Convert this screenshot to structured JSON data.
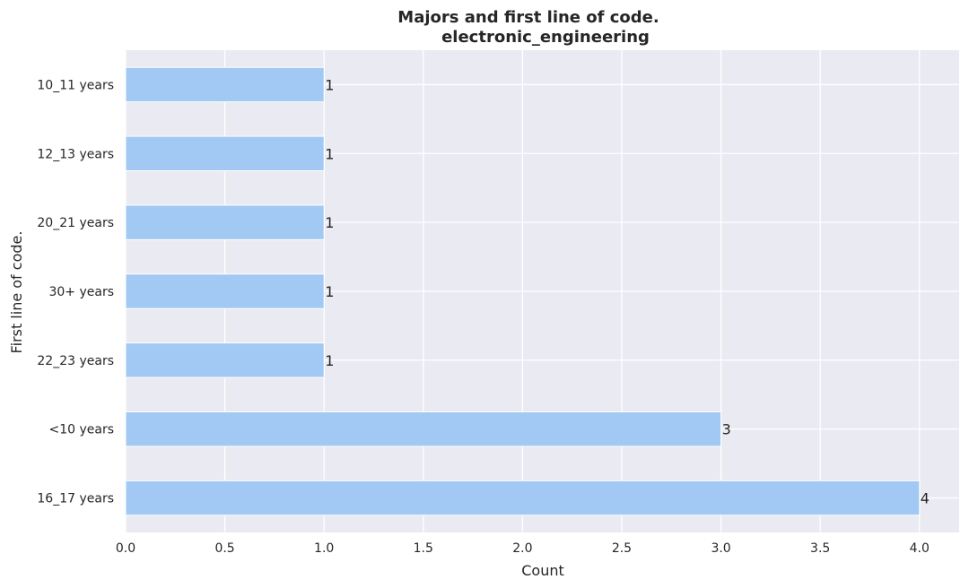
{
  "chart_data": {
    "type": "bar",
    "orientation": "horizontal",
    "title_line1": "Majors and first line of code.",
    "title_line2": "electronic_engineering",
    "xlabel": "Count",
    "ylabel": "First line of code.",
    "categories": [
      "10_11 years",
      "12_13 years",
      "20_21 years",
      "30+ years",
      "22_23 years",
      "<10 years",
      "16_17 years"
    ],
    "values": [
      1,
      1,
      1,
      1,
      1,
      3,
      4
    ],
    "xlim": [
      0,
      4.2
    ],
    "xticks": [
      "0.0",
      "0.5",
      "1.0",
      "1.5",
      "2.0",
      "2.5",
      "3.0",
      "3.5",
      "4.0"
    ],
    "grid": true,
    "legend": "none",
    "colors": {
      "bar": "#a1c9f4",
      "background": "#eaeaf2",
      "grid": "#ffffff",
      "text": "#262626"
    }
  }
}
